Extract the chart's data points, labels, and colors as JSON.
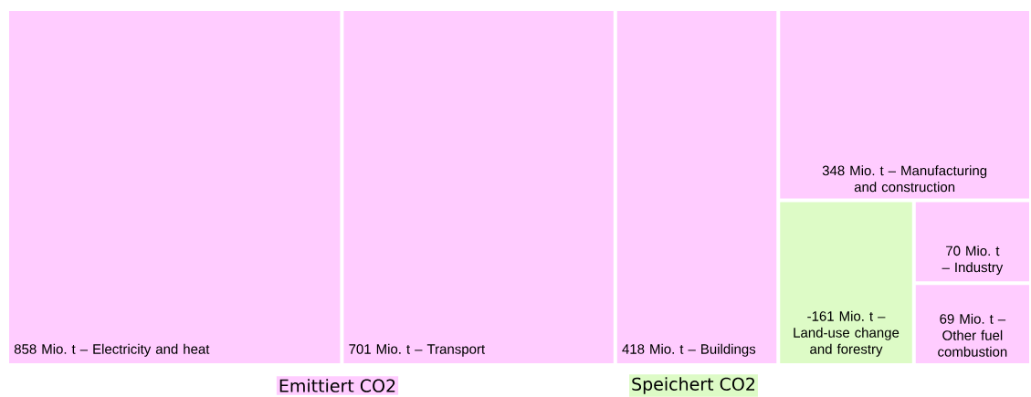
{
  "chart_data": {
    "type": "other",
    "categories": [
      "Electricity and heat",
      "Transport",
      "Buildings",
      "Manufacturing and construction",
      "Land-use change and forestry",
      "Industry",
      "Other fuel combustion"
    ],
    "series": [
      {
        "name": "Emittiert CO2",
        "color": "#ffccff",
        "values": [
          858,
          701,
          418,
          348,
          null,
          70,
          69
        ],
        "value_labels": [
          "858 Mio. t –",
          "701 Mio. t –",
          "418 Mio. t –",
          "348 Mio. t –",
          null,
          "70 Mio. t –",
          "69 Mio. t –"
        ]
      },
      {
        "name": "Speichert CO2",
        "color": "#ddfbc6",
        "values": [
          null,
          null,
          null,
          null,
          -161,
          null,
          null
        ],
        "value_labels": [
          null,
          null,
          null,
          null,
          "-161 Mio. t –",
          null,
          null
        ]
      }
    ],
    "legend": "bottom"
  }
}
